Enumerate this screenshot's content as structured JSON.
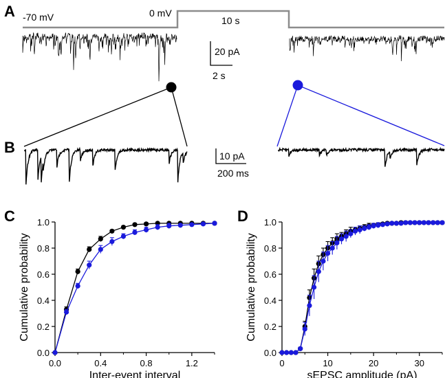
{
  "panels": {
    "a": {
      "letter": "A",
      "holding_label": "-70 mV",
      "step_label": "0 mV",
      "duration_label": "10 s",
      "scalebar_y": "20 pA",
      "scalebar_x": "2 s"
    },
    "b": {
      "letter": "B",
      "scalebar_y": "10 pA",
      "scalebar_x": "200 ms"
    },
    "c": {
      "letter": "C"
    },
    "d": {
      "letter": "D"
    }
  },
  "colors": {
    "before": "#000000",
    "after": "#1a1adc",
    "command": "#8c8c8c"
  },
  "chart_data": [
    {
      "panel": "C",
      "type": "line",
      "xlabel": "Inter-event interval",
      "ylabel": "Cumulative probability",
      "xlim": [
        0,
        1.4
      ],
      "ylim": [
        0,
        1.0
      ],
      "xticks": [
        "0.0",
        "0.4",
        "0.8",
        "1.2"
      ],
      "yticks": [
        "0.0",
        "0.2",
        "0.4",
        "0.6",
        "0.8",
        "1.0"
      ],
      "x": [
        0.0,
        0.1,
        0.2,
        0.3,
        0.4,
        0.5,
        0.6,
        0.7,
        0.8,
        0.9,
        1.0,
        1.1,
        1.2,
        1.3,
        1.4
      ],
      "series": [
        {
          "color": "#000000",
          "values": [
            0.0,
            0.33,
            0.62,
            0.79,
            0.87,
            0.93,
            0.96,
            0.98,
            0.985,
            0.99,
            0.99,
            0.99,
            0.99,
            0.99,
            0.99
          ],
          "error": [
            0,
            0.02,
            0.02,
            0.02,
            0.02,
            0.01,
            0.01,
            0.01,
            0.01,
            0.01,
            0.01,
            0.01,
            0.01,
            0.01,
            0.01
          ]
        },
        {
          "color": "#1a1adc",
          "values": [
            0.0,
            0.31,
            0.51,
            0.67,
            0.79,
            0.85,
            0.89,
            0.92,
            0.94,
            0.96,
            0.97,
            0.975,
            0.98,
            0.985,
            0.99
          ],
          "error": [
            0,
            0.02,
            0.02,
            0.03,
            0.03,
            0.03,
            0.02,
            0.02,
            0.02,
            0.02,
            0.02,
            0.01,
            0.01,
            0.01,
            0.01
          ]
        }
      ]
    },
    {
      "panel": "D",
      "type": "line",
      "xlabel": "sEPSC amplitude (pA)",
      "ylabel": "Cumulative probability",
      "xlim": [
        0,
        35
      ],
      "ylim": [
        0,
        1.0
      ],
      "xticks": [
        "0",
        "10",
        "20",
        "30"
      ],
      "yticks": [
        "0.0",
        "0.2",
        "0.4",
        "0.6",
        "0.8",
        "1.0"
      ],
      "x": [
        0,
        1,
        2,
        3,
        4,
        5,
        6,
        7,
        8,
        9,
        10,
        11,
        12,
        13,
        14,
        15,
        16,
        17,
        18,
        19,
        20,
        21,
        22,
        23,
        24,
        25,
        26,
        27,
        28,
        29,
        30,
        31,
        32,
        33,
        34,
        35
      ],
      "series": [
        {
          "color": "#000000",
          "values": [
            0,
            0,
            0,
            0,
            0.03,
            0.2,
            0.42,
            0.57,
            0.68,
            0.75,
            0.8,
            0.84,
            0.87,
            0.89,
            0.91,
            0.93,
            0.94,
            0.95,
            0.96,
            0.97,
            0.975,
            0.98,
            0.985,
            0.99,
            0.99,
            0.99,
            0.995,
            0.995,
            0.995,
            0.995,
            0.995,
            0.995,
            0.995,
            0.995,
            0.995,
            0.995
          ],
          "error": [
            0,
            0,
            0,
            0,
            0.01,
            0.04,
            0.06,
            0.07,
            0.06,
            0.05,
            0.05,
            0.04,
            0.04,
            0.03,
            0.03,
            0.03,
            0.02,
            0.02,
            0.02,
            0.02,
            0.01,
            0.01,
            0.01,
            0.01,
            0.01,
            0.01,
            0.01,
            0.01,
            0.01,
            0.01,
            0.01,
            0.01,
            0.01,
            0.01,
            0.01,
            0.01
          ]
        },
        {
          "color": "#1a1adc",
          "values": [
            0,
            0,
            0,
            0,
            0.03,
            0.18,
            0.36,
            0.5,
            0.62,
            0.7,
            0.76,
            0.8,
            0.84,
            0.87,
            0.89,
            0.91,
            0.93,
            0.94,
            0.95,
            0.96,
            0.97,
            0.975,
            0.98,
            0.985,
            0.99,
            0.99,
            0.99,
            0.995,
            0.995,
            0.995,
            0.995,
            0.995,
            0.995,
            0.995,
            0.995,
            0.995
          ],
          "error": [
            0,
            0,
            0,
            0,
            0.01,
            0.05,
            0.08,
            0.09,
            0.08,
            0.07,
            0.06,
            0.05,
            0.05,
            0.04,
            0.04,
            0.03,
            0.03,
            0.03,
            0.02,
            0.02,
            0.02,
            0.02,
            0.01,
            0.01,
            0.01,
            0.01,
            0.01,
            0.01,
            0.01,
            0.01,
            0.01,
            0.01,
            0.01,
            0.01,
            0.01,
            0.01
          ]
        }
      ]
    }
  ]
}
